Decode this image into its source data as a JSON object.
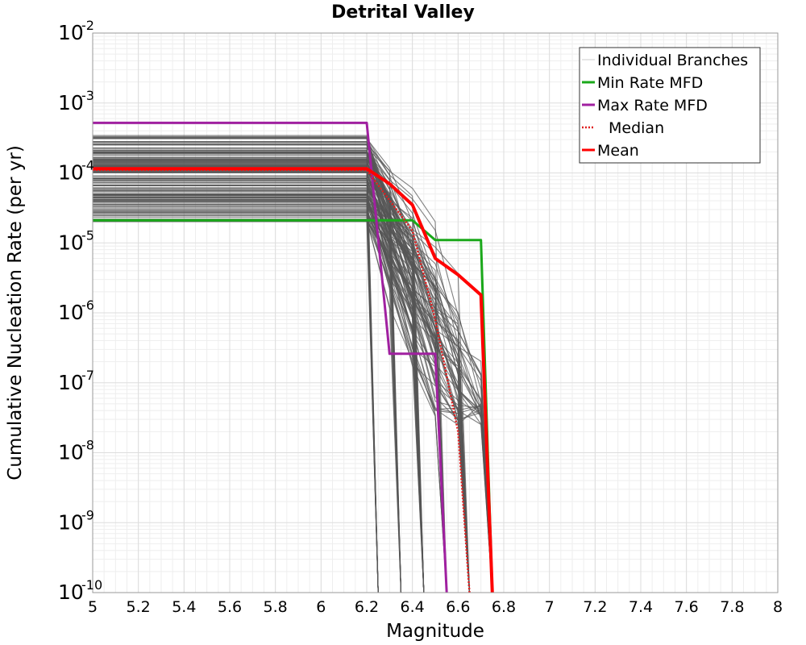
{
  "chart_data": {
    "type": "line",
    "title": "Detrital Valley",
    "xlabel": "Magnitude",
    "ylabel": "Cumulative Nucleation Rate (per yr)",
    "xlim": [
      5,
      8
    ],
    "ylim": [
      1e-10,
      0.01
    ],
    "yscale": "log",
    "grid": true,
    "legend_position": "top-right",
    "x_ticks": [
      "5",
      "5.2",
      "5.4",
      "5.6",
      "5.8",
      "6",
      "6.2",
      "6.4",
      "6.6",
      "6.8",
      "7",
      "7.2",
      "7.4",
      "7.6",
      "7.8",
      "8"
    ],
    "y_ticks": [
      {
        "base": "10",
        "exp": "-10",
        "value": 1e-10
      },
      {
        "base": "10",
        "exp": "-9",
        "value": 1e-09
      },
      {
        "base": "10",
        "exp": "-8",
        "value": 1e-08
      },
      {
        "base": "10",
        "exp": "-7",
        "value": 1e-07
      },
      {
        "base": "10",
        "exp": "-6",
        "value": 1e-06
      },
      {
        "base": "10",
        "exp": "-5",
        "value": 1e-05
      },
      {
        "base": "10",
        "exp": "-4",
        "value": 0.0001
      },
      {
        "base": "10",
        "exp": "-3",
        "value": 0.001
      },
      {
        "base": "10",
        "exp": "-2",
        "value": 0.01
      }
    ],
    "series": [
      {
        "name": "Min Rate MFD",
        "color": "#1aa81a",
        "style": "solid",
        "x": [
          5.0,
          6.4,
          6.5,
          6.7,
          6.75
        ],
        "y": [
          2.1e-05,
          2.1e-05,
          1.1e-05,
          1.1e-05,
          1e-10
        ]
      },
      {
        "name": "Max Rate MFD",
        "color": "#a020a0",
        "style": "solid",
        "x": [
          5.0,
          6.2,
          6.3,
          6.5,
          6.55
        ],
        "y": [
          0.00052,
          0.00052,
          2.6e-07,
          2.6e-07,
          1e-10
        ]
      },
      {
        "name": "Median",
        "color": "#e02020",
        "style": "dotted",
        "x": [
          5.0,
          6.2,
          6.4,
          6.5,
          6.6,
          6.65
        ],
        "y": [
          0.00011,
          0.00011,
          1.5e-05,
          8e-07,
          2e-08,
          1e-10
        ]
      },
      {
        "name": "Mean",
        "color": "#ff0000",
        "style": "solid",
        "x": [
          5.0,
          6.2,
          6.3,
          6.4,
          6.5,
          6.6,
          6.7,
          6.75
        ],
        "y": [
          0.000115,
          0.000115,
          7e-05,
          3.5e-05,
          6e-06,
          3.5e-06,
          1.8e-06,
          1e-10
        ]
      }
    ],
    "individual_branches": {
      "name": "Individual Branches",
      "color": "#555555"
    }
  },
  "legend": {
    "items": [
      {
        "label": "Individual Branches",
        "color": "#cccccc",
        "style": "thin"
      },
      {
        "label": "Min Rate MFD",
        "color": "#1aa81a",
        "style": "solid"
      },
      {
        "label": "Max Rate MFD",
        "color": "#a020a0",
        "style": "solid"
      },
      {
        "label": "Median",
        "color": "#e02020",
        "style": "dotted"
      },
      {
        "label": "Mean",
        "color": "#ff0000",
        "style": "solid"
      }
    ]
  }
}
